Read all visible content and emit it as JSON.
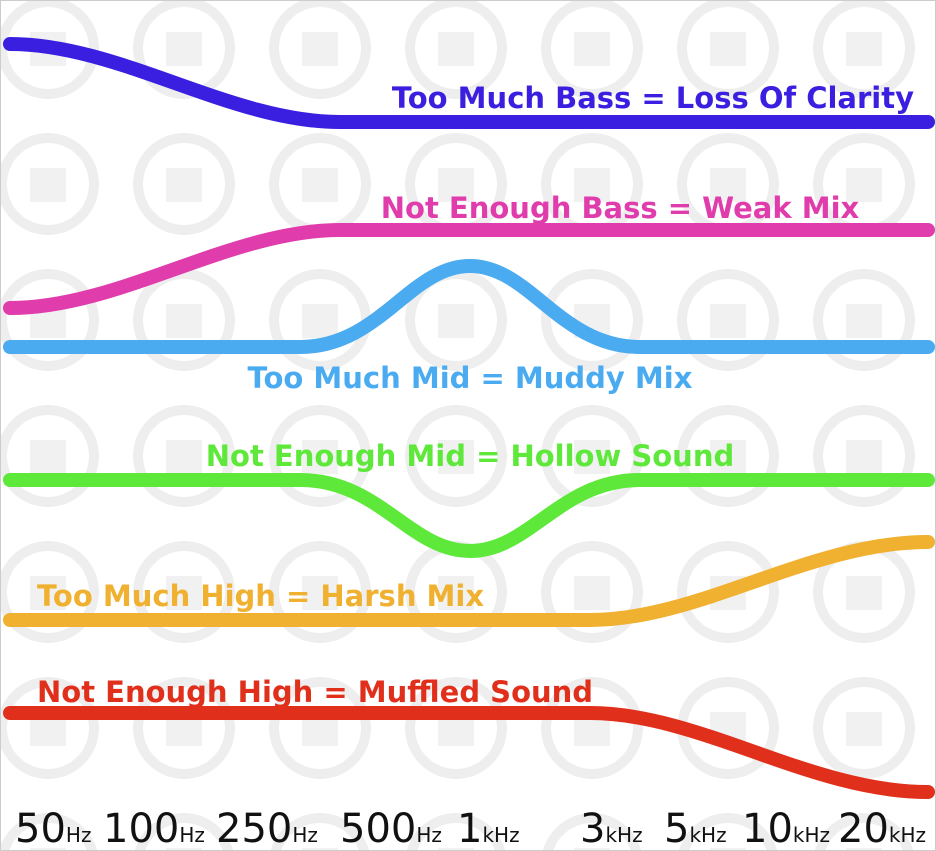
{
  "curves": [
    {
      "label": "Too Much Bass = Loss Of Clarity"
    },
    {
      "label": "Not Enough Bass = Weak Mix"
    },
    {
      "label": "Too Much Mid = Muddy Mix"
    },
    {
      "label": "Not Enough Mid = Hollow Sound"
    },
    {
      "label": "Too Much High = Harsh Mix"
    },
    {
      "label": "Not Enough High = Muffled Sound"
    }
  ],
  "frequency_labels": [
    {
      "number": "50",
      "unit": "Hz"
    },
    {
      "number": "100",
      "unit": "Hz"
    },
    {
      "number": "250",
      "unit": "Hz"
    },
    {
      "number": "500",
      "unit": "Hz"
    },
    {
      "number": "1",
      "unit": "kHz"
    },
    {
      "number": "3",
      "unit": "kHz"
    },
    {
      "number": "5",
      "unit": "kHz"
    },
    {
      "number": "10",
      "unit": "kHz"
    },
    {
      "number": "20",
      "unit": "kHz"
    }
  ]
}
